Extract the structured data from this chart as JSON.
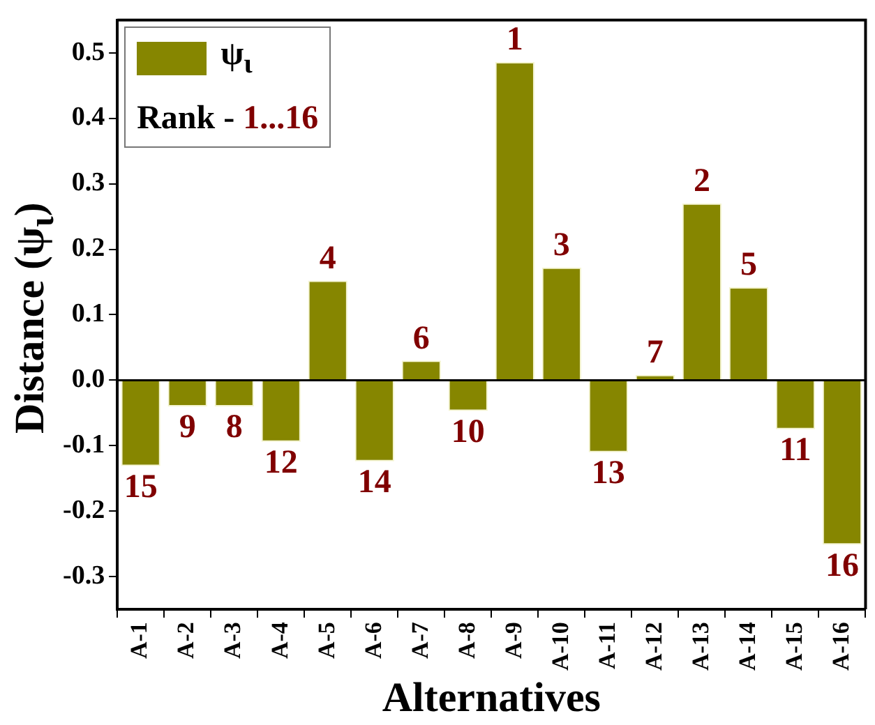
{
  "chart_data": {
    "type": "bar",
    "xlabel": "Alternatives",
    "ylabel": "Distance (ψ$_{ι}$)",
    "categories": [
      "A-1",
      "A-2",
      "A-3",
      "A-4",
      "A-5",
      "A-6",
      "A-7",
      "A-8",
      "A-9",
      "A-10",
      "A-11",
      "A-12",
      "A-13",
      "A-14",
      "A-15",
      "A-16"
    ],
    "series": [
      {
        "name": "ψ$_{ι}$",
        "color": "#868600",
        "values": [
          -0.131,
          -0.04,
          -0.04,
          -0.094,
          0.152,
          -0.124,
          0.03,
          -0.047,
          0.486,
          0.172,
          -0.11,
          0.008,
          0.27,
          0.142,
          -0.075,
          -0.251
        ]
      }
    ],
    "ylim": [
      -0.35,
      0.55
    ],
    "yticks": [
      {
        "value": -0.3,
        "label": "-0.3"
      },
      {
        "value": -0.2,
        "label": "-0.2"
      },
      {
        "value": -0.1,
        "label": "-0.1"
      },
      {
        "value": 0,
        "label": "0.0"
      },
      {
        "value": 0.1,
        "label": "0.1"
      },
      {
        "value": 0.2,
        "label": "0.2"
      },
      {
        "value": 0.3,
        "label": "0.3"
      },
      {
        "value": 0.4,
        "label": "0.4"
      },
      {
        "value": 0.5,
        "label": "0.5"
      }
    ],
    "grid": false,
    "legend": "top left",
    "ref_lines": [
      {
        "axis": "y",
        "value": 0,
        "color": "#000000"
      }
    ],
    "annotations": [
      "Rank - ",
      "1...16",
      {
        "text": "15",
        "x": "A-1",
        "y": -0.131
      },
      {
        "text": "9",
        "x": "A-2",
        "y": -0.04
      },
      {
        "text": "8",
        "x": "A-3",
        "y": -0.04
      },
      {
        "text": "12",
        "x": "A-4",
        "y": -0.094
      },
      {
        "text": "4",
        "x": "A-5",
        "y": 0.152
      },
      {
        "text": "14",
        "x": "A-6",
        "y": -0.124
      },
      {
        "text": "6",
        "x": "A-7",
        "y": 0.03
      },
      {
        "text": "10",
        "x": "A-8",
        "y": -0.047
      },
      {
        "text": "1",
        "x": "A-9",
        "y": 0.486
      },
      {
        "text": "3",
        "x": "A-10",
        "y": 0.172
      },
      {
        "text": "13",
        "x": "A-11",
        "y": -0.11
      },
      {
        "text": "7",
        "x": "A-12",
        "y": 0.008
      },
      {
        "text": "2",
        "x": "A-13",
        "y": 0.27
      },
      {
        "text": "5",
        "x": "A-14",
        "y": 0.142
      },
      {
        "text": "11",
        "x": "A-15",
        "y": -0.075
      },
      {
        "text": "16",
        "x": "A-16",
        "y": -0.251
      }
    ]
  }
}
